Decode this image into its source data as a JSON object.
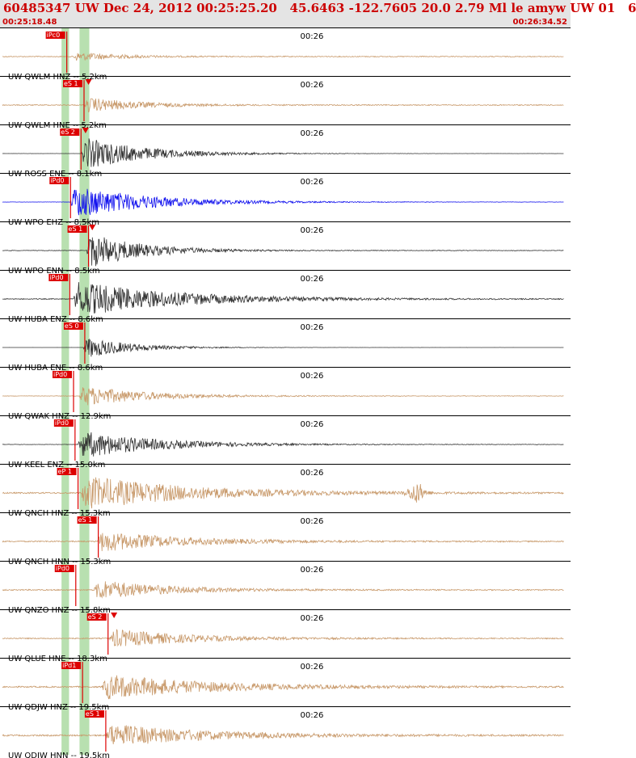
{
  "header": {
    "title": "60485347 UW Dec 24, 2012 00:25:25.20   45.6463 -122.7605 20.0 2.79 Ml le amyw UW 01   6",
    "start_time": "00:25:18.48",
    "end_time": "00:26:34.52"
  },
  "colors": {
    "header_bg": "#e4e4e4",
    "header_text": "#cc0000",
    "pick_color": "#dd0000",
    "window_band": "#b8e0b0",
    "tan": "#c8996a",
    "dark": "#333333",
    "blue": "#1010ee"
  },
  "chart_data": {
    "type": "line",
    "title": "60485347 UW Dec 24, 2012 00:25:25.20   45.6463 -122.7605 20.0 2.79 Ml le amyw UW 01   6",
    "x_range_seconds": [
      0,
      76.04
    ],
    "time_marker_label": "00:26",
    "time_marker_seconds": 41.52,
    "window_band_seconds": [
      [
        8.2,
        9.2
      ],
      [
        10.6,
        11.9
      ]
    ],
    "traces": [
      {
        "label": "UW QWLM HNZ -- 5.2km",
        "color": "tan",
        "amp": 0.35,
        "pick_label": "iPc0",
        "pick_s": 8.9,
        "tri_s": null,
        "onset_s": 9.6,
        "envelope": 0.7,
        "decay": 6,
        "noise": 0.35
      },
      {
        "label": "UW QWLM HNE -- 5.2km",
        "color": "tan",
        "amp": 0.45,
        "pick_label": "eS 1",
        "pick_s": 11.2,
        "tri_s": 11.8,
        "onset_s": 11.2,
        "envelope": 0.9,
        "decay": 7,
        "noise": 0.3
      },
      {
        "label": "UW ROSS ENE -- 8.1km",
        "color": "dark",
        "amp": 0.9,
        "pick_label": "eS 2",
        "pick_s": 10.8,
        "tri_s": 11.4,
        "onset_s": 10.8,
        "envelope": 1.0,
        "decay": 8,
        "noise": 0.02
      },
      {
        "label": "UW WPO EHZ -- 8.5km",
        "color": "blue",
        "amp": 0.9,
        "pick_label": "iPd0",
        "pick_s": 9.4,
        "tri_s": null,
        "onset_s": 9.4,
        "envelope": 1.0,
        "decay": 10,
        "noise": 0.04
      },
      {
        "label": "UW WPO ENN -- 8.5km",
        "color": "dark",
        "amp": 0.95,
        "pick_label": "eS 1",
        "pick_s": 11.8,
        "tri_s": 12.3,
        "onset_s": 11.5,
        "envelope": 1.0,
        "decay": 7,
        "noise": 0.08
      },
      {
        "label": "UW HUBA ENZ -- 8.6km",
        "color": "dark",
        "amp": 0.95,
        "pick_label": "iPd0",
        "pick_s": 9.3,
        "tri_s": null,
        "onset_s": 9.8,
        "envelope": 1.0,
        "decay": 13,
        "noise": 0.12
      },
      {
        "label": "UW HUBA ENE -- 8.6km",
        "color": "dark",
        "amp": 0.6,
        "pick_label": "eS 0",
        "pick_s": 11.3,
        "tri_s": null,
        "onset_s": 11.1,
        "envelope": 1.0,
        "decay": 6,
        "noise": 0.02
      },
      {
        "label": "UW QWAK HNZ -- 12.9km",
        "color": "tan",
        "amp": 0.55,
        "pick_label": "iPd0",
        "pick_s": 9.8,
        "tri_s": null,
        "onset_s": 10.5,
        "envelope": 1.0,
        "decay": 9,
        "noise": 0.12
      },
      {
        "label": "UW KEEL ENZ -- 15.0km",
        "color": "dark",
        "amp": 0.75,
        "pick_label": "iPd0",
        "pick_s": 10.0,
        "tri_s": null,
        "onset_s": 10.4,
        "envelope": 1.0,
        "decay": 10,
        "noise": 0.08
      },
      {
        "label": "UW QNCH HNZ -- 15.3km",
        "color": "tan",
        "amp": 0.9,
        "pick_label": "eP 1",
        "pick_s": 10.4,
        "tri_s": null,
        "onset_s": 10.8,
        "envelope": 1.0,
        "decay": 14,
        "noise": 0.22,
        "burst_s": 55.5
      },
      {
        "label": "UW QNCH HNN -- 15.3km",
        "color": "tan",
        "amp": 0.55,
        "pick_label": "eS 1",
        "pick_s": 13.1,
        "tri_s": null,
        "onset_s": 12.9,
        "envelope": 1.0,
        "decay": 11,
        "noise": 0.3
      },
      {
        "label": "UW QNZO HNZ -- 15.8km",
        "color": "tan",
        "amp": 0.55,
        "pick_label": "iPd0",
        "pick_s": 10.1,
        "tri_s": null,
        "onset_s": 12.5,
        "envelope": 1.0,
        "decay": 9,
        "noise": 0.3
      },
      {
        "label": "UW QLUE HNE -- 18.3km",
        "color": "tan",
        "amp": 0.5,
        "pick_label": "eS 2",
        "pick_s": 14.4,
        "tri_s": 15.2,
        "onset_s": 14.6,
        "envelope": 1.0,
        "decay": 10,
        "noise": 0.3
      },
      {
        "label": "UW QDJW HNZ -- 19.5km",
        "color": "tan",
        "amp": 0.65,
        "pick_label": "iPd1",
        "pick_s": 11.0,
        "tri_s": null,
        "onset_s": 13.6,
        "envelope": 1.0,
        "decay": 14,
        "noise": 0.3
      },
      {
        "label": "UW QDJW HNN -- 19.5km",
        "color": "tan",
        "amp": 0.6,
        "pick_label": "eS 1",
        "pick_s": 14.1,
        "tri_s": null,
        "onset_s": 14.1,
        "envelope": 1.0,
        "decay": 13,
        "noise": 0.35
      }
    ]
  }
}
